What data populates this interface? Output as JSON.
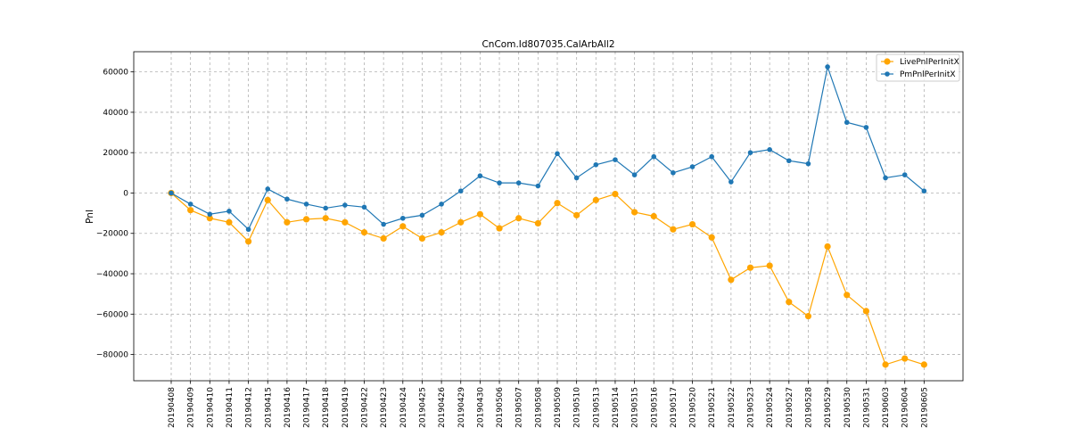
{
  "chart_data": {
    "type": "line",
    "title": "CnCom.Id807035.CalArbAll2",
    "xlabel": "",
    "ylabel": "Pnl",
    "ylim": [
      -93000,
      70000
    ],
    "yticks": [
      -80000,
      -60000,
      -40000,
      -20000,
      0,
      20000,
      40000,
      60000
    ],
    "ytick_labels": [
      "−80000",
      "−60000",
      "−40000",
      "−20000",
      "0",
      "20000",
      "40000",
      "60000"
    ],
    "grid": true,
    "legend_position": "top-right",
    "categories": [
      "20190408",
      "20190409",
      "20190410",
      "20190411",
      "20190412",
      "20190415",
      "20190416",
      "20190417",
      "20190418",
      "20190419",
      "20190422",
      "20190423",
      "20190424",
      "20190425",
      "20190426",
      "20190429",
      "20190430",
      "20190506",
      "20190507",
      "20190508",
      "20190509",
      "20190510",
      "20190513",
      "20190514",
      "20190515",
      "20190516",
      "20190517",
      "20190520",
      "20190521",
      "20190522",
      "20190523",
      "20190524",
      "20190527",
      "20190528",
      "20190529",
      "20190530",
      "20190531",
      "20190603",
      "20190604",
      "20190605"
    ],
    "series": [
      {
        "name": "LivePnlPerInitX",
        "color": "#ffa500",
        "values": [
          0,
          -8500,
          -12500,
          -14500,
          -24000,
          -3500,
          -14500,
          -13000,
          -12500,
          -14500,
          -19500,
          -22500,
          -16500,
          -22500,
          -19500,
          -14500,
          -10500,
          -17500,
          -12500,
          -15000,
          -5000,
          -11000,
          -3500,
          -500,
          -9500,
          -11500,
          -18000,
          -15500,
          -22000,
          -43000,
          -37000,
          -36000,
          -54000,
          -61000,
          -26500,
          -50500,
          -58500,
          -85000,
          -82000,
          -85000
        ]
      },
      {
        "name": "PmPnlPerInitX",
        "color": "#1f77b4",
        "values": [
          0,
          -5500,
          -10500,
          -9000,
          -18000,
          2000,
          -3000,
          -5500,
          -7500,
          -6000,
          -7000,
          -15500,
          -12500,
          -11000,
          -5500,
          1000,
          8500,
          5000,
          5000,
          3500,
          19500,
          7500,
          14000,
          16500,
          9000,
          18000,
          10000,
          13000,
          18000,
          5500,
          20000,
          21500,
          16000,
          14500,
          62500,
          35000,
          32500,
          7500,
          9000,
          1000
        ]
      }
    ]
  }
}
